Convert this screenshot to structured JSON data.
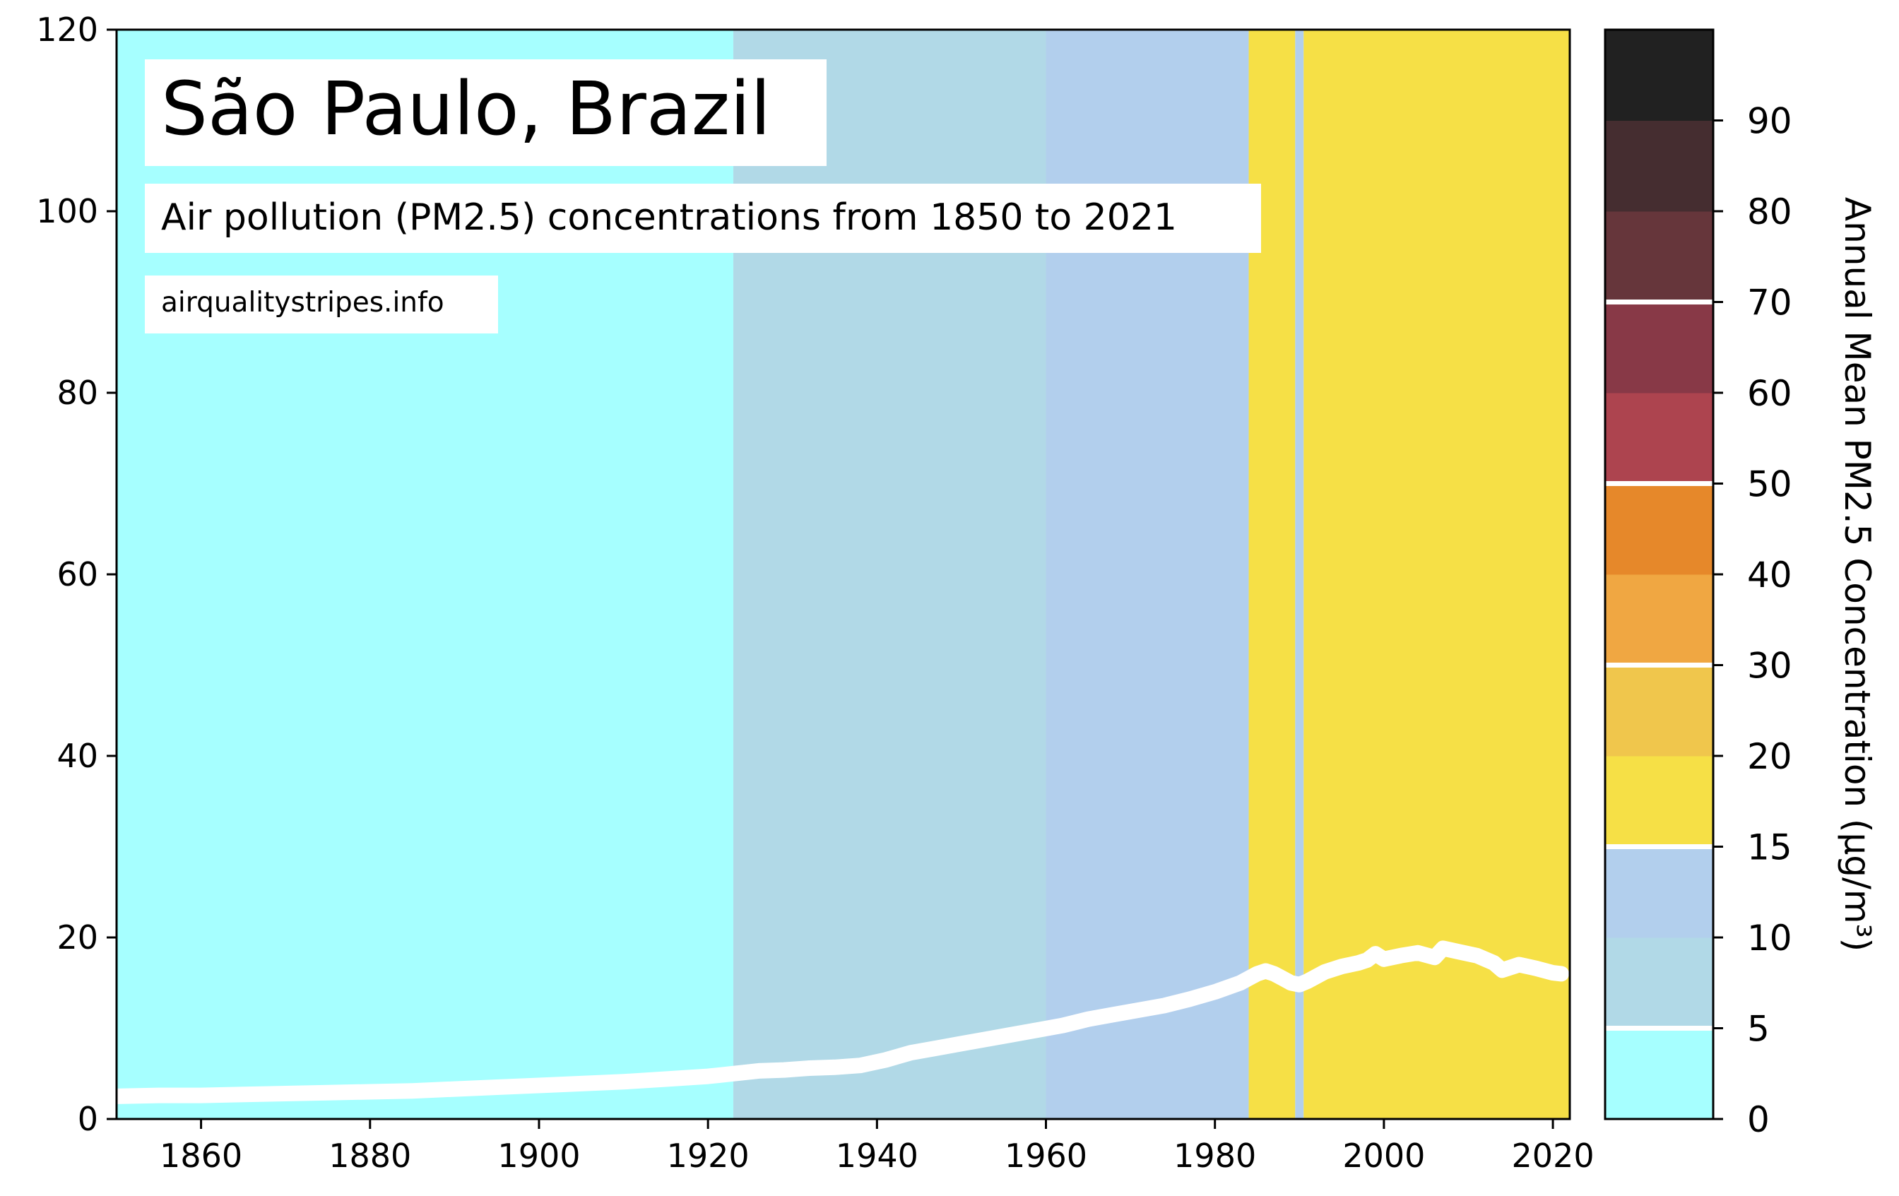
{
  "chart_data": {
    "type": "line",
    "title": "São Paulo, Brazil",
    "subtitle": "Air pollution (PM2.5) concentrations from 1850 to 2021",
    "source": "airqualitystripes.info",
    "xlim": [
      1850,
      2022
    ],
    "ylim": [
      0,
      120
    ],
    "x_ticks": [
      1860,
      1880,
      1900,
      1920,
      1940,
      1960,
      1980,
      2000,
      2020
    ],
    "y_ticks": [
      0,
      20,
      40,
      60,
      80,
      100,
      120
    ],
    "grid": false,
    "background_stripes": [
      {
        "from": 1850,
        "to": 1923,
        "color": "#a6ffff"
      },
      {
        "from": 1923,
        "to": 1960,
        "color": "#b1d9e7"
      },
      {
        "from": 1960,
        "to": 1984,
        "color": "#b2cfed"
      },
      {
        "from": 1984,
        "to": 1989.5,
        "color": "#f6e046"
      },
      {
        "from": 1989.5,
        "to": 1990.5,
        "color": "#b2cfed"
      },
      {
        "from": 1990.5,
        "to": 2022,
        "color": "#f6e046"
      }
    ],
    "series": [
      {
        "color": "#ffffff",
        "x": [
          1850,
          1855,
          1860,
          1865,
          1870,
          1875,
          1880,
          1885,
          1890,
          1895,
          1900,
          1905,
          1910,
          1915,
          1920,
          1923,
          1926,
          1929,
          1932,
          1935,
          1938,
          1941,
          1944,
          1947,
          1950,
          1953,
          1956,
          1959,
          1962,
          1965,
          1968,
          1971,
          1974,
          1977,
          1980,
          1983,
          1985,
          1986,
          1987,
          1988,
          1989,
          1990,
          1991,
          1993,
          1995,
          1997,
          1998,
          1999,
          2000,
          2002,
          2004,
          2006,
          2007,
          2008,
          2009,
          2011,
          2013,
          2014,
          2016,
          2018,
          2020,
          2021
        ],
        "y": [
          2.5,
          2.6,
          2.6,
          2.7,
          2.8,
          2.9,
          3.0,
          3.1,
          3.3,
          3.5,
          3.7,
          3.9,
          4.1,
          4.4,
          4.7,
          5.0,
          5.3,
          5.4,
          5.6,
          5.7,
          5.9,
          6.5,
          7.3,
          7.8,
          8.3,
          8.8,
          9.3,
          9.8,
          10.3,
          11.0,
          11.5,
          12.0,
          12.5,
          13.2,
          14.0,
          15.0,
          16.0,
          16.3,
          16.0,
          15.5,
          15.0,
          14.8,
          15.2,
          16.2,
          16.8,
          17.2,
          17.5,
          18.2,
          17.6,
          18.0,
          18.3,
          17.8,
          18.8,
          18.6,
          18.4,
          18.0,
          17.2,
          16.4,
          17.0,
          16.6,
          16.1,
          16.0
        ]
      }
    ],
    "colorbar": {
      "label": "Annual Mean PM2.5 Concentration (µg/m³)",
      "tick_labels": [
        "0",
        "5",
        "10",
        "15",
        "20",
        "30",
        "40",
        "50",
        "60",
        "70",
        "80",
        "90"
      ],
      "colors": [
        "#a6ffff",
        "#b1d9e7",
        "#b2cfed",
        "#f6e046",
        "#f0c64c",
        "#f0a742",
        "#e6882a",
        "#ad444f",
        "#883947",
        "#66363b",
        "#452d30",
        "#212121"
      ],
      "separator_after_levels": [
        1,
        3,
        5,
        7,
        9
      ]
    }
  }
}
